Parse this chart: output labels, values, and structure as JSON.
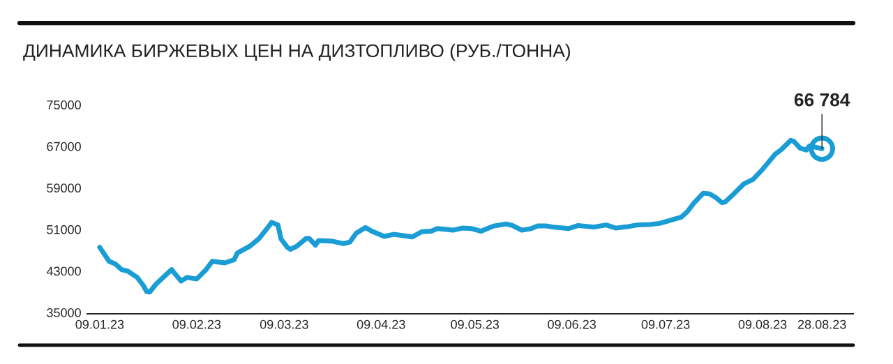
{
  "chart_data": {
    "type": "line",
    "title": "ДИНАМИКА БИРЖЕВЫХ ЦЕН НА ДИЗТОПЛИВО (РУБ./ТОННА)",
    "x": [
      "2023-01-09",
      "2023-01-12",
      "2023-01-14",
      "2023-01-16",
      "2023-01-18",
      "2023-01-21",
      "2023-01-23",
      "2023-01-24",
      "2023-01-25",
      "2023-01-27",
      "2023-01-30",
      "2023-02-01",
      "2023-02-04",
      "2023-02-06",
      "2023-02-09",
      "2023-02-12",
      "2023-02-14",
      "2023-02-18",
      "2023-02-21",
      "2023-02-22",
      "2023-02-26",
      "2023-03-01",
      "2023-03-04",
      "2023-03-05",
      "2023-03-07",
      "2023-03-08",
      "2023-03-10",
      "2023-03-11",
      "2023-03-13",
      "2023-03-16",
      "2023-03-17",
      "2023-03-19",
      "2023-03-20",
      "2023-03-24",
      "2023-03-28",
      "2023-03-30",
      "2023-04-01",
      "2023-04-04",
      "2023-04-06",
      "2023-04-10",
      "2023-04-13",
      "2023-04-19",
      "2023-04-22",
      "2023-04-25",
      "2023-04-27",
      "2023-05-02",
      "2023-05-05",
      "2023-05-08",
      "2023-05-11",
      "2023-05-13",
      "2023-05-15",
      "2023-05-19",
      "2023-05-21",
      "2023-05-24",
      "2023-05-27",
      "2023-05-29",
      "2023-06-01",
      "2023-06-03",
      "2023-06-08",
      "2023-06-11",
      "2023-06-16",
      "2023-06-20",
      "2023-06-23",
      "2023-06-27",
      "2023-06-30",
      "2023-07-04",
      "2023-07-07",
      "2023-07-10",
      "2023-07-14",
      "2023-07-16",
      "2023-07-18",
      "2023-07-21",
      "2023-07-23",
      "2023-07-25",
      "2023-07-27",
      "2023-07-28",
      "2023-07-31",
      "2023-08-03",
      "2023-08-06",
      "2023-08-09",
      "2023-08-13",
      "2023-08-15",
      "2023-08-18",
      "2023-08-19",
      "2023-08-21",
      "2023-08-23",
      "2023-08-24",
      "2023-08-28"
    ],
    "values": [
      47800,
      45100,
      44600,
      43500,
      43200,
      42000,
      40400,
      39300,
      39200,
      40700,
      42400,
      43500,
      41300,
      42000,
      41700,
      43500,
      45100,
      44800,
      45400,
      46700,
      48000,
      49500,
      51800,
      52600,
      52100,
      49400,
      47800,
      47400,
      48000,
      49500,
      49500,
      48200,
      49100,
      49000,
      48500,
      48800,
      50500,
      51600,
      50900,
      49900,
      50300,
      49800,
      50800,
      50900,
      51400,
      51100,
      51500,
      51400,
      50900,
      51400,
      51900,
      52300,
      52000,
      51100,
      51400,
      51900,
      51900,
      51700,
      51400,
      52000,
      51700,
      52100,
      51500,
      51800,
      52100,
      52200,
      52400,
      52900,
      53600,
      54700,
      56300,
      58200,
      58100,
      57400,
      56400,
      56500,
      58200,
      60000,
      60900,
      62800,
      65700,
      66600,
      68400,
      68200,
      66900,
      66500,
      67300,
      66784
    ],
    "color": "#1a9cd4",
    "line_style": "solid",
    "xlim": [
      "2023-01-05",
      "2023-09-07"
    ],
    "xticks": [
      {
        "value": "2023-01-09",
        "label": "09.01.23"
      },
      {
        "value": "2023-02-09",
        "label": "09.02.23"
      },
      {
        "value": "2023-03-09",
        "label": "09.03.23"
      },
      {
        "value": "2023-04-09",
        "label": "09.04.23"
      },
      {
        "value": "2023-05-09",
        "label": "09.05.23"
      },
      {
        "value": "2023-06-09",
        "label": "09.06.23"
      },
      {
        "value": "2023-07-09",
        "label": "09.07.23"
      },
      {
        "value": "2023-08-09",
        "label": "09.08.23"
      },
      {
        "value": "2023-08-28",
        "label": "28.08.23"
      }
    ],
    "ylim": [
      35000,
      75000
    ],
    "yticks": [
      35000,
      43000,
      51000,
      59000,
      67000,
      75000
    ],
    "annotations": [
      {
        "text": "66 784",
        "x": "2023-08-28",
        "y": 66784
      }
    ]
  }
}
